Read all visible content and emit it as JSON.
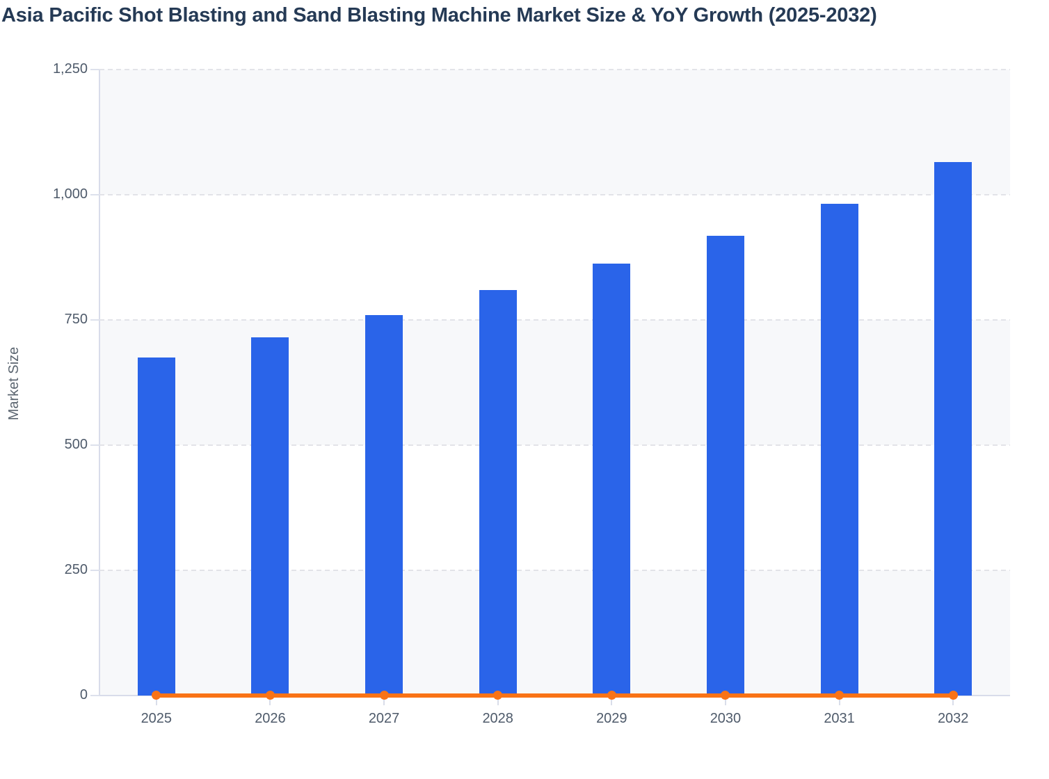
{
  "title": "Asia Pacific Shot Blasting and Sand Blasting Machine Market Size & YoY Growth (2025-2032)",
  "chart_data": {
    "type": "bar",
    "title": "Asia Pacific Shot Blasting and Sand Blasting Machine Market Size & YoY Growth (2025-2032)",
    "xlabel": "",
    "ylabel": "Market Size",
    "categories": [
      "2025",
      "2026",
      "2027",
      "2028",
      "2029",
      "2030",
      "2031",
      "2032"
    ],
    "series": [
      {
        "name": "Market Size",
        "type": "bar",
        "color": "#2a64e9",
        "values": [
          675,
          715,
          760,
          810,
          862,
          918,
          982,
          1065
        ]
      },
      {
        "name": "YoY Growth",
        "type": "line",
        "color": "#f97316",
        "values": [
          0,
          0,
          0,
          0,
          0,
          0,
          0,
          0
        ],
        "note": "rendered flat along the zero baseline with circular markers; no data labels shown"
      }
    ],
    "ylim": [
      0,
      1250
    ],
    "ytick_values": [
      1250,
      1000,
      750,
      500,
      250,
      0
    ],
    "ytick_labels": [
      "1,250",
      "1,000",
      "750",
      "500",
      "250",
      "0"
    ],
    "grid": "dashed horizontal gridlines, alternating band fills",
    "legend": "none",
    "band_colors": {
      "shaded": "#f7f8fa",
      "plain": "#ffffff"
    },
    "axis_color": "#d8dcea",
    "gridline_color": "#e2e3e8",
    "text_colors": {
      "title": "#253a55",
      "ticks": "#4e5a6a",
      "axis_title": "#5b6570"
    }
  }
}
